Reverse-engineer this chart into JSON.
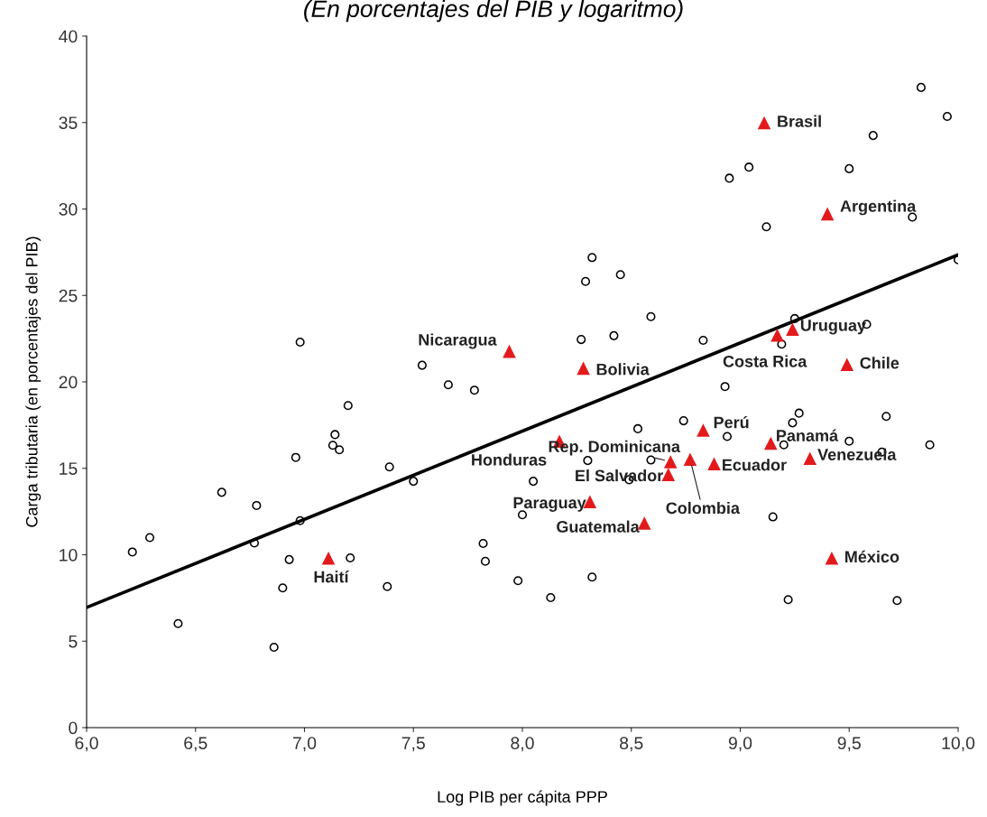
{
  "chart_data": {
    "type": "scatter",
    "subtitle": "(En porcentajes del PIB y logaritmo)",
    "xlabel": "Log PIB per cápita PPP",
    "ylabel": "Carga tributaria (en porcentajes del PIB)",
    "xlim": [
      6.0,
      10.0
    ],
    "ylim": [
      0,
      40
    ],
    "xticks": [
      {
        "value": 6.0,
        "label": "6,0"
      },
      {
        "value": 6.5,
        "label": "6,5"
      },
      {
        "value": 7.0,
        "label": "7,0"
      },
      {
        "value": 7.5,
        "label": "7,5"
      },
      {
        "value": 8.0,
        "label": "8,0"
      },
      {
        "value": 8.5,
        "label": "8,5"
      },
      {
        "value": 9.0,
        "label": "9,0"
      },
      {
        "value": 9.5,
        "label": "9,5"
      },
      {
        "value": 10.0,
        "label": "10,0"
      }
    ],
    "yticks": [
      0,
      5,
      10,
      15,
      20,
      25,
      30,
      35,
      40
    ],
    "grid": false,
    "legend": false,
    "series": [
      {
        "marker": "circle",
        "color": "#000000",
        "x": [
          6.21,
          6.29,
          6.42,
          6.62,
          6.77,
          6.78,
          6.86,
          6.9,
          6.93,
          6.96,
          6.98,
          6.98,
          7.13,
          7.14,
          7.16,
          7.2,
          7.21,
          7.38,
          7.39,
          7.5,
          7.54,
          7.66,
          7.78,
          7.82,
          7.83,
          7.98,
          8.0,
          8.05,
          8.13,
          8.27,
          8.29,
          8.3,
          8.32,
          8.32,
          8.42,
          8.45,
          8.49,
          8.53,
          8.59,
          8.59,
          8.74,
          8.83,
          8.93,
          8.94,
          8.95,
          9.04,
          9.12,
          9.15,
          9.19,
          9.2,
          9.22,
          9.24,
          9.25,
          9.27,
          9.5,
          9.5,
          9.58,
          9.61,
          9.65,
          9.67,
          9.72,
          9.79,
          9.83,
          9.87,
          9.95,
          10.0
        ],
        "values": [
          10.16,
          10.99,
          6.02,
          13.61,
          10.68,
          12.85,
          4.65,
          8.08,
          9.72,
          15.63,
          22.3,
          11.97,
          16.33,
          16.95,
          16.07,
          18.63,
          9.82,
          8.16,
          15.08,
          14.25,
          20.96,
          19.83,
          19.52,
          10.65,
          9.62,
          8.5,
          12.31,
          14.25,
          7.52,
          22.45,
          25.81,
          15.45,
          27.19,
          8.71,
          22.67,
          26.2,
          14.34,
          17.29,
          23.77,
          15.48,
          17.75,
          22.4,
          19.73,
          16.84,
          31.78,
          32.42,
          28.97,
          12.19,
          22.18,
          16.36,
          7.4,
          17.63,
          23.66,
          18.19,
          16.57,
          32.33,
          23.33,
          34.25,
          15.94,
          18.0,
          7.35,
          29.53,
          37.03,
          16.36,
          35.35,
          27.06
        ]
      },
      {
        "marker": "triangle",
        "color": "#e31a1c",
        "x": [
          7.11,
          7.94,
          8.17,
          8.28,
          8.31,
          8.56,
          8.67,
          8.68,
          8.77,
          8.83,
          8.88,
          9.11,
          9.14,
          9.17,
          9.24,
          9.32,
          9.4,
          9.42,
          9.49
        ],
        "values": [
          9.8,
          21.77,
          16.57,
          20.79,
          13.07,
          11.83,
          14.64,
          15.38,
          15.52,
          17.21,
          15.26,
          34.99,
          16.45,
          22.7,
          23.04,
          15.57,
          29.72,
          9.8,
          21.01
        ]
      },
      {
        "type": "line",
        "marker": "none",
        "color": "#000000",
        "x": [
          6.0,
          10.0
        ],
        "values": [
          6.95,
          27.35
        ]
      }
    ],
    "annotations": [
      {
        "text": "Haití",
        "x": 7.11,
        "y": 9.8
      },
      {
        "text": "Nicaragua",
        "x": 7.94,
        "y": 21.77
      },
      {
        "text": "Honduras",
        "x": 8.17,
        "y": 16.57
      },
      {
        "text": "Bolivia",
        "x": 8.28,
        "y": 20.79
      },
      {
        "text": "Paraguay",
        "x": 8.31,
        "y": 13.07
      },
      {
        "text": "Guatemala",
        "x": 8.56,
        "y": 11.83
      },
      {
        "text": "El Salvador",
        "x": 8.67,
        "y": 14.64
      },
      {
        "text": "Rep. Dominicana",
        "x": 8.68,
        "y": 15.38
      },
      {
        "text": "Colombia",
        "x": 8.77,
        "y": 15.52
      },
      {
        "text": "Perú",
        "x": 8.83,
        "y": 17.21
      },
      {
        "text": "Ecuador",
        "x": 8.88,
        "y": 15.26
      },
      {
        "text": "Brasil",
        "x": 9.11,
        "y": 34.99
      },
      {
        "text": "Panamá",
        "x": 9.14,
        "y": 16.45
      },
      {
        "text": "Costa Rica",
        "x": 9.17,
        "y": 22.7
      },
      {
        "text": "Uruguay",
        "x": 9.24,
        "y": 23.04
      },
      {
        "text": "Venezuela",
        "x": 9.32,
        "y": 15.57
      },
      {
        "text": "Argentina",
        "x": 9.4,
        "y": 29.72
      },
      {
        "text": "México",
        "x": 9.42,
        "y": 9.8
      },
      {
        "text": "Chile",
        "x": 9.49,
        "y": 21.01
      }
    ]
  }
}
